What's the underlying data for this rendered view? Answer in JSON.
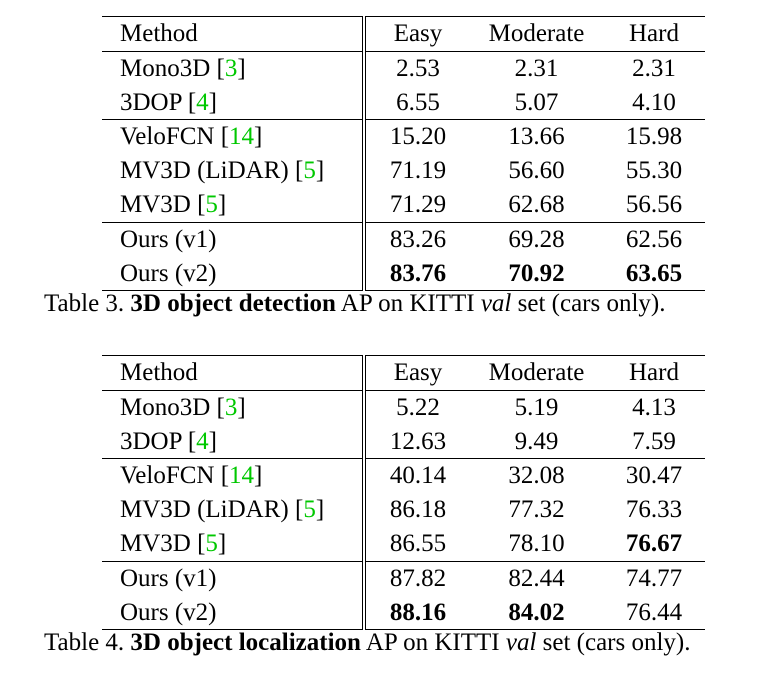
{
  "table3": {
    "headers": [
      "Method",
      "Easy",
      "Moderate",
      "Hard"
    ],
    "rows": [
      {
        "method": "Mono3D",
        "ref": "3",
        "easy": "2.53",
        "moderate": "2.31",
        "hard": "2.31"
      },
      {
        "method": "3DOP",
        "ref": "4",
        "easy": "6.55",
        "moderate": "5.07",
        "hard": "4.10"
      },
      {
        "method": "VeloFCN",
        "ref": "14",
        "easy": "15.20",
        "moderate": "13.66",
        "hard": "15.98"
      },
      {
        "method": "MV3D (LiDAR)",
        "ref": "5",
        "easy": "71.19",
        "moderate": "56.60",
        "hard": "55.30"
      },
      {
        "method": "MV3D",
        "ref": "5",
        "easy": "71.29",
        "moderate": "62.68",
        "hard": "56.56"
      },
      {
        "method": "Ours (v1)",
        "ref": "",
        "easy": "83.26",
        "moderate": "69.28",
        "hard": "62.56"
      },
      {
        "method": "Ours (v2)",
        "ref": "",
        "easy": "83.76",
        "moderate": "70.92",
        "hard": "63.65"
      }
    ],
    "caption": {
      "label": "Table 3.",
      "bold": "3D object detection",
      "mid": "AP on KITTI",
      "italic": "val",
      "end": "set (cars only)."
    }
  },
  "table4": {
    "headers": [
      "Method",
      "Easy",
      "Moderate",
      "Hard"
    ],
    "rows": [
      {
        "method": "Mono3D",
        "ref": "3",
        "easy": "5.22",
        "moderate": "5.19",
        "hard": "4.13"
      },
      {
        "method": "3DOP",
        "ref": "4",
        "easy": "12.63",
        "moderate": "9.49",
        "hard": "7.59"
      },
      {
        "method": "VeloFCN",
        "ref": "14",
        "easy": "40.14",
        "moderate": "32.08",
        "hard": "30.47"
      },
      {
        "method": "MV3D (LiDAR)",
        "ref": "5",
        "easy": "86.18",
        "moderate": "77.32",
        "hard": "76.33"
      },
      {
        "method": "MV3D",
        "ref": "5",
        "easy": "86.55",
        "moderate": "78.10",
        "hard": "76.67"
      },
      {
        "method": "Ours (v1)",
        "ref": "",
        "easy": "87.82",
        "moderate": "82.44",
        "hard": "74.77"
      },
      {
        "method": "Ours (v2)",
        "ref": "",
        "easy": "88.16",
        "moderate": "84.02",
        "hard": "76.44"
      }
    ],
    "caption": {
      "label": "Table 4.",
      "bold": "3D object localization",
      "mid": "AP on KITTI",
      "italic": "val",
      "end": "set (cars only)."
    }
  },
  "colors": {
    "ref_link": "#00c800",
    "text": "#000000"
  }
}
